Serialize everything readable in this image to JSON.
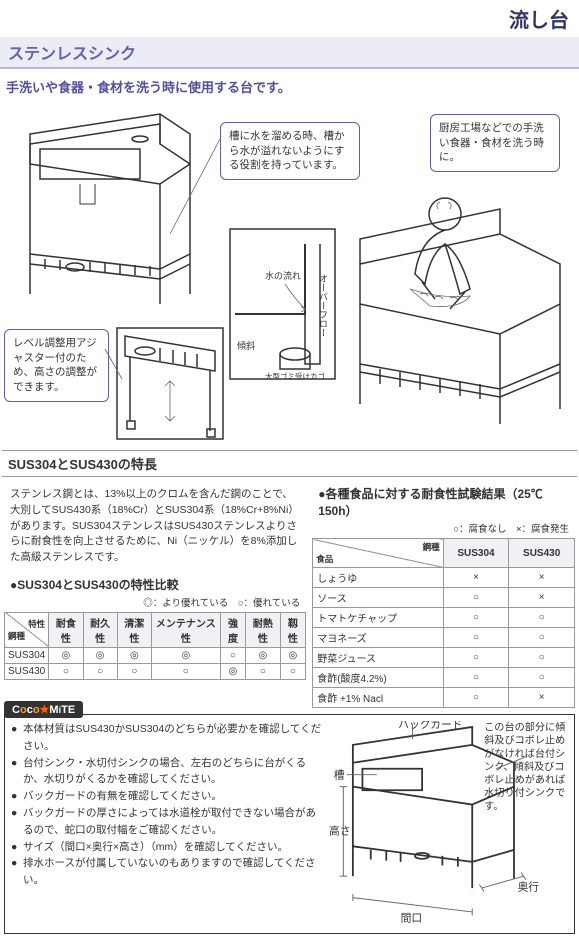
{
  "header": {
    "main_title": "流し台",
    "sub_title": "ステンレスシンク"
  },
  "description": "手洗いや食器・食材を洗う時に使用する台です。",
  "callouts": {
    "c1": "槽に水を溜める時、槽から水が溢れないようにする役割を持っています。",
    "c2": "厨房工場などでの手洗い食器・食材を洗う時に。",
    "c3": "レベル調整用アジャスター付のため、高さの調整ができます。"
  },
  "detail_labels": {
    "flow": "水の流れ",
    "overflow": "オーバーフロー",
    "incline": "傾斜",
    "basket": "大型ゴミ受けカゴ"
  },
  "section_title": "SUS304とSUS430の特長",
  "section_body": "ステンレス鋼とは、13%以上のクロムを含んだ鋼のことで、大別してSUS430系（18%Cr）とSUS304系（18%Cr+8%Ni）があります。SUS304ステンレスはSUS430ステンレスよりさらに耐食性を向上させるために、Ni（ニッケル）を8%添加した高級ステンレスです。",
  "compare": {
    "title": "●SUS304とSUS430の特性比較",
    "legend": "◎：より優れている　○：優れている",
    "diag_top": "特性",
    "diag_bottom": "鋼種",
    "cols": [
      "耐食性",
      "耐久性",
      "清潔性",
      "メンテナンス性",
      "強度",
      "耐熱性",
      "靱性"
    ],
    "rows": [
      {
        "name": "SUS304",
        "vals": [
          "◎",
          "◎",
          "◎",
          "◎",
          "○",
          "◎",
          "◎"
        ]
      },
      {
        "name": "SUS430",
        "vals": [
          "○",
          "○",
          "○",
          "○",
          "◎",
          "○",
          "○"
        ]
      }
    ]
  },
  "test": {
    "title": "●各種食品に対する耐食性試験結果（25℃　150h）",
    "legend": "○：腐食なし　×：腐食発生",
    "diag_top": "鋼種",
    "diag_bottom": "食品",
    "cols": [
      "SUS304",
      "SUS430"
    ],
    "rows": [
      {
        "name": "しょうゆ",
        "vals": [
          "×",
          "×"
        ]
      },
      {
        "name": "ソース",
        "vals": [
          "○",
          "×"
        ]
      },
      {
        "name": "トマトケチャップ",
        "vals": [
          "○",
          "○"
        ]
      },
      {
        "name": "マヨネーズ",
        "vals": [
          "○",
          "○"
        ]
      },
      {
        "name": "野菜ジュース",
        "vals": [
          "○",
          "○"
        ]
      },
      {
        "name": "食酢(酸度4.2%)",
        "vals": [
          "○",
          "○"
        ]
      },
      {
        "name": "食酢 +1% Nacl",
        "vals": [
          "○",
          "×"
        ]
      }
    ]
  },
  "coco": {
    "brand": "CocoMiTE",
    "bullets": [
      "本体材質はSUS430かSUS304のどちらが必要かを確認してください。",
      "台付シンク・水切付シンクの場合、左右のどちらに台がくるか、水切りがくるかを確認してください。",
      "バックガードの有無を確認してください。",
      "バックガードの厚さによっては水道栓が取付できない場合があるので、蛇口の取付幅をご確認ください。",
      "サイズ（間口×奥行×高さ）（mm）を確認してください。",
      "排水ホースが付属していないのもありますので確認してください。"
    ],
    "diagram_labels": {
      "backguard": "バックガード",
      "trough": "槽",
      "depth": "奥行",
      "height": "高さ",
      "width": "間口",
      "note": "この台の部分に傾斜及びコボレ止めがなければ台付シンク、傾斜及びコボレ止めがあれば水切り付シンクです。"
    }
  },
  "colors": {
    "accent": "#6262a8",
    "header_bg": "#ececf6",
    "border": "#999999"
  }
}
